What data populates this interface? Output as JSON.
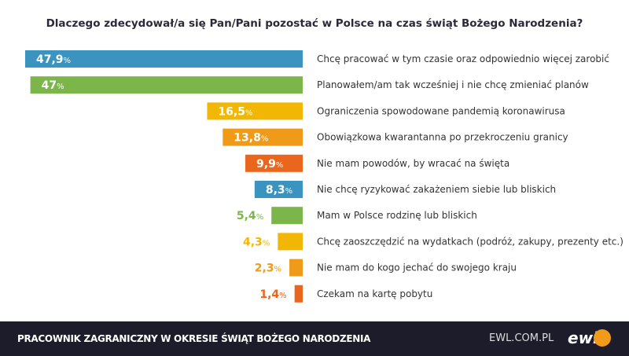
{
  "chart_data": {
    "type": "bar",
    "orientation": "horizontal",
    "title": "Dlaczego zdecydował/a się Pan/Pani pozostać w Polsce na czas świąt Bożego Narodzenia?",
    "categories": [
      "Chcę pracować w tym czasie oraz odpowiednio więcej zarobić",
      "Planowałem/am tak wcześniej i nie chcę zmieniać planów",
      "Ograniczenia spowodowane pandemią koronawirusa",
      "Obowiązkowa kwarantanna po przekroczeniu granicy",
      "Nie mam powodów, by wracać na święta",
      "Nie chcę ryzykować zakażeniem siebie lub bliskich",
      "Mam w Polsce rodzinę lub bliskich",
      "Chcę zaoszczędzić na wydatkach (podróż, zakupy, prezenty etc.)",
      "Nie mam do kogo jechać do swojego kraju",
      "Czekam na kartę pobytu"
    ],
    "values": [
      47.9,
      47,
      16.5,
      13.8,
      9.9,
      8.3,
      5.4,
      4.3,
      2.3,
      1.4
    ],
    "labels": [
      "47,9",
      "47",
      "16,5",
      "13,8",
      "9,9",
      "8,3",
      "5,4",
      "4,3",
      "2,3",
      "1,4"
    ],
    "unit": "%",
    "colors": [
      "#3b93bf",
      "#7cb64a",
      "#f2b705",
      "#f09a1a",
      "#ea661c",
      "#3b93bf",
      "#7cb64a",
      "#f2b705",
      "#f09a1a",
      "#ea661c"
    ],
    "xlim": [
      0,
      48
    ],
    "grid": false
  },
  "footer": {
    "title": "PRACOWNIK ZAGRANICZNY W OKRESIE ŚWIĄT BOŻEGO NARODZENIA",
    "url": "EWL.COM.PL",
    "logo": "ewl"
  }
}
